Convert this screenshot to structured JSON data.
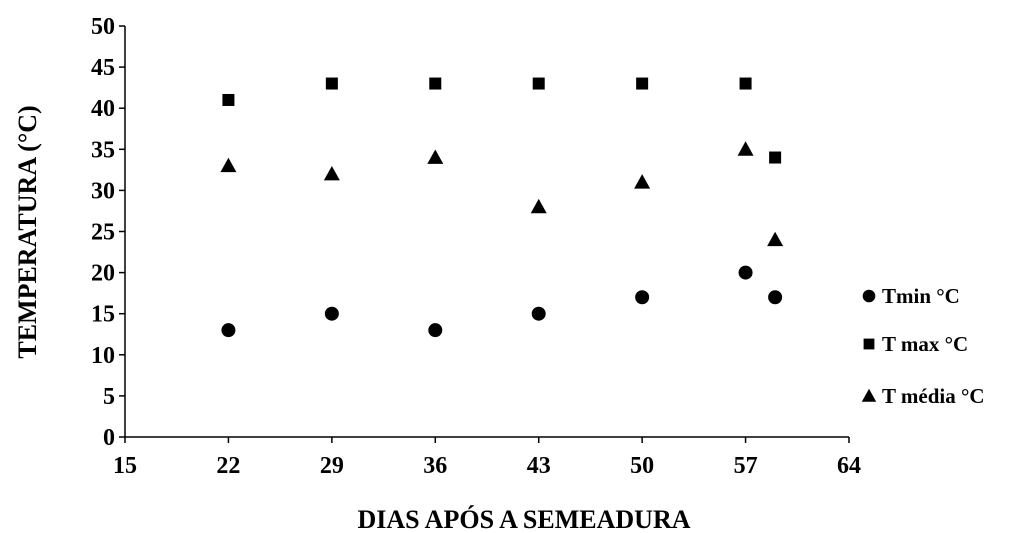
{
  "chart_data": {
    "type": "scatter",
    "title": "",
    "xlabel": "DIAS APÓS A SEMEADURA",
    "ylabel": "TEMPERATURA (°C)",
    "xlim": [
      15,
      64
    ],
    "ylim": [
      0,
      50
    ],
    "xticks": [
      15,
      22,
      29,
      36,
      43,
      50,
      57,
      64
    ],
    "yticks": [
      0,
      5,
      10,
      15,
      20,
      25,
      30,
      35,
      40,
      45,
      50
    ],
    "grid": false,
    "legend_position": "right",
    "series": [
      {
        "name": "Tmin °C",
        "marker": "circle",
        "color": "#000000",
        "points": [
          {
            "x": 22,
            "y": 13
          },
          {
            "x": 29,
            "y": 15
          },
          {
            "x": 36,
            "y": 13
          },
          {
            "x": 43,
            "y": 15
          },
          {
            "x": 50,
            "y": 17
          },
          {
            "x": 57,
            "y": 20
          },
          {
            "x": 59,
            "y": 17
          }
        ]
      },
      {
        "name": "T max °C",
        "marker": "square",
        "color": "#000000",
        "points": [
          {
            "x": 22,
            "y": 41
          },
          {
            "x": 29,
            "y": 43
          },
          {
            "x": 36,
            "y": 43
          },
          {
            "x": 43,
            "y": 43
          },
          {
            "x": 50,
            "y": 43
          },
          {
            "x": 57,
            "y": 43
          },
          {
            "x": 59,
            "y": 34
          }
        ]
      },
      {
        "name": "T média °C",
        "marker": "triangle",
        "color": "#000000",
        "points": [
          {
            "x": 22,
            "y": 33
          },
          {
            "x": 29,
            "y": 32
          },
          {
            "x": 36,
            "y": 34
          },
          {
            "x": 43,
            "y": 28
          },
          {
            "x": 50,
            "y": 31
          },
          {
            "x": 57,
            "y": 35
          },
          {
            "x": 59,
            "y": 24
          }
        ]
      }
    ]
  }
}
